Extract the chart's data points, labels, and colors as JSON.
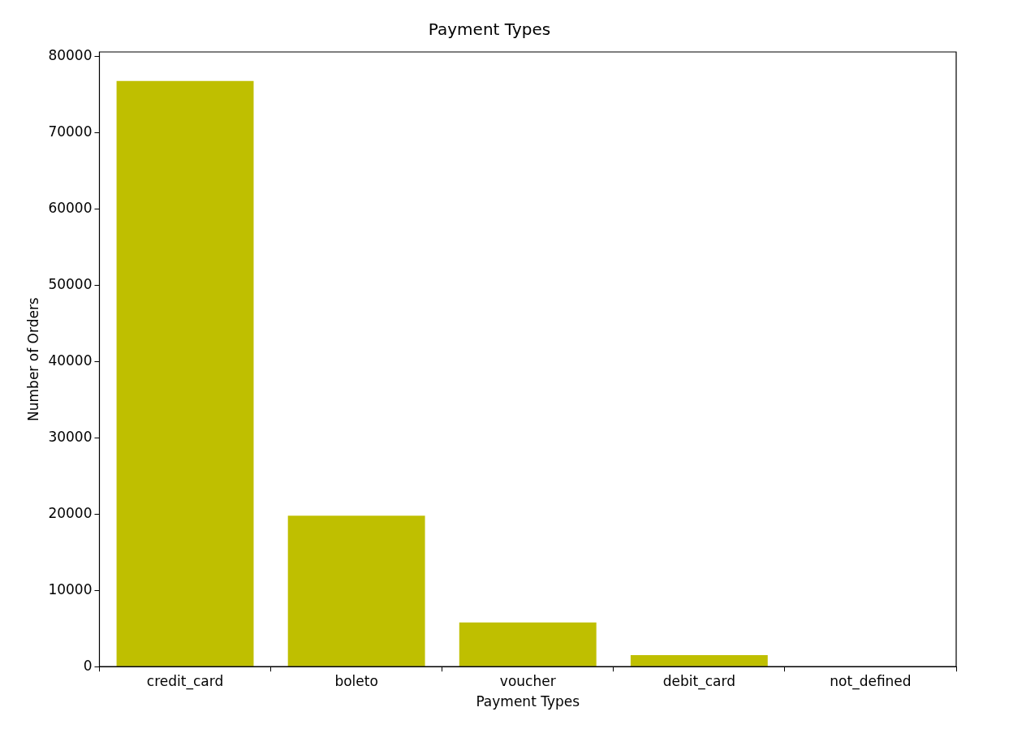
{
  "chart_data": {
    "type": "bar",
    "title": "Payment Types",
    "xlabel": "Payment Types",
    "ylabel": "Number of Orders",
    "categories": [
      "credit_card",
      "boleto",
      "voucher",
      "debit_card",
      "not_defined"
    ],
    "values": [
      76800,
      19800,
      5800,
      1500,
      null
    ],
    "color": "#bfbf00",
    "ylim": [
      0,
      80600
    ],
    "yticks": [
      0,
      10000,
      20000,
      30000,
      40000,
      50000,
      60000,
      70000,
      80000
    ],
    "grid": false,
    "legend": false
  }
}
